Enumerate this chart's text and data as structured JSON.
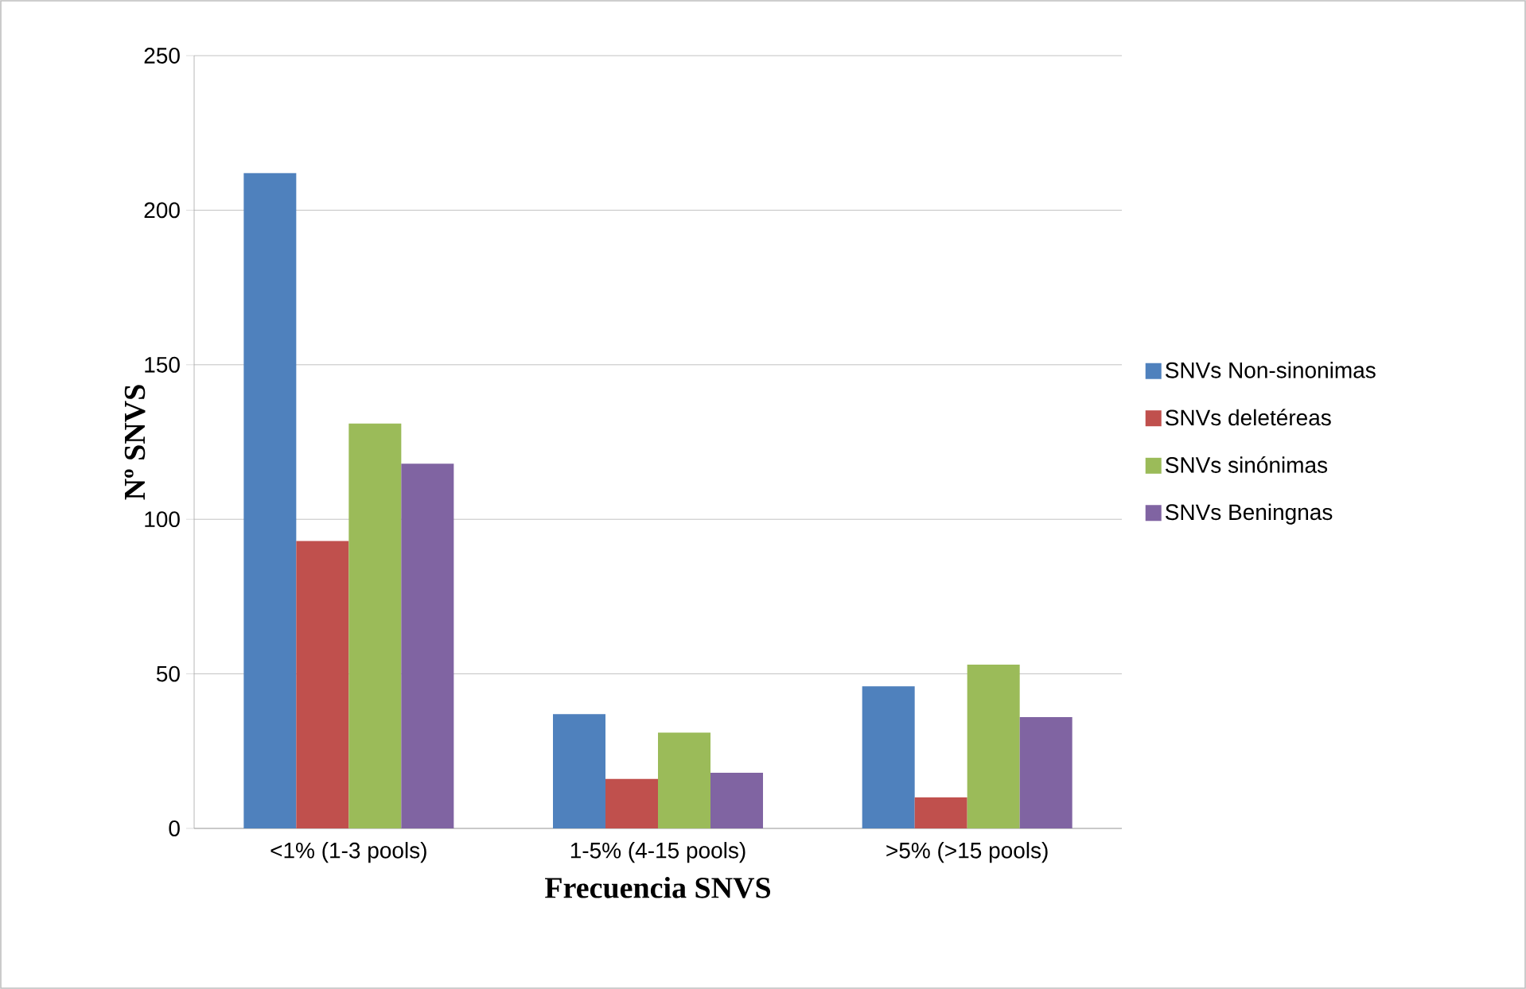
{
  "chart_data": {
    "type": "bar",
    "xlabel": "Frecuencia  SNVS",
    "ylabel": "Nº  SNVS",
    "categories": [
      "<1% (1-3 pools)",
      "1-5% (4-15 pools)",
      ">5% (>15 pools)"
    ],
    "series": [
      {
        "name": "SNVs Non-sinonimas",
        "color": "#4f81bd",
        "values": [
          212,
          37,
          46
        ]
      },
      {
        "name": "SNVs deletéreas",
        "color": "#c0504d",
        "values": [
          93,
          16,
          10
        ]
      },
      {
        "name": "SNVs sinónimas",
        "color": "#9bbb59",
        "values": [
          131,
          31,
          53
        ]
      },
      {
        "name": "SNVs Beningnas",
        "color": "#8064a2",
        "values": [
          118,
          18,
          36
        ]
      }
    ],
    "ylim": [
      0,
      250
    ],
    "yticks": [
      0,
      50,
      100,
      150,
      200,
      250
    ],
    "grid": "y",
    "legend": "right"
  }
}
